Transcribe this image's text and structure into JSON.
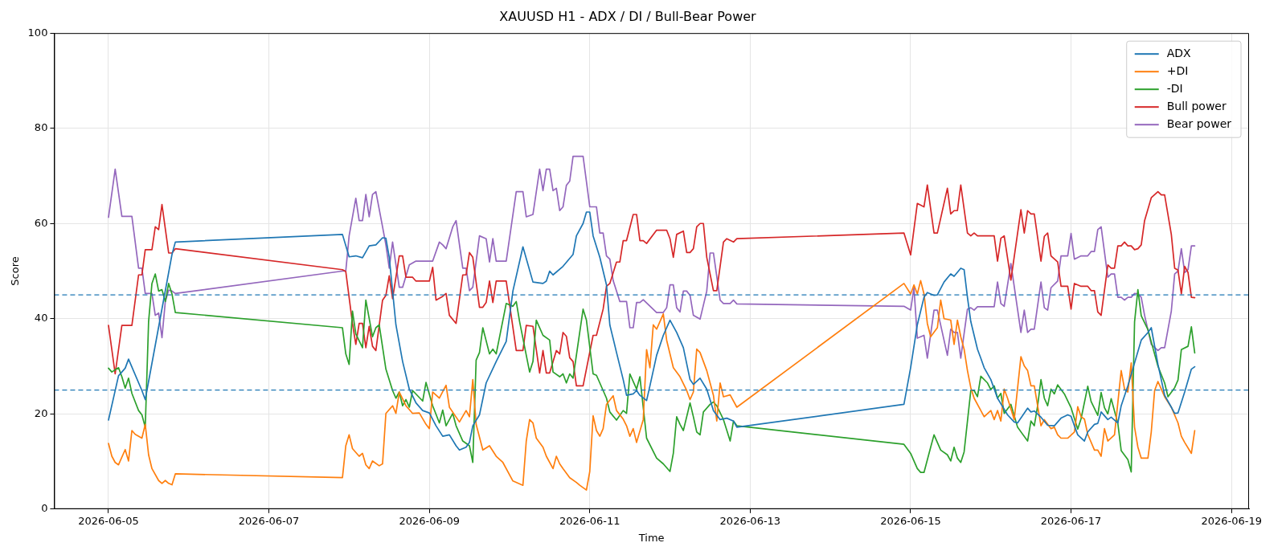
{
  "chart_data": {
    "type": "line",
    "title": "XAUUSD H1 - ADX / DI / Bull-Bear Power",
    "xlabel": "Time",
    "ylabel": "Score",
    "xlim": [
      "2026-06-04T07:45",
      "2026-06-19T05:15"
    ],
    "xticks": [
      "2026-06-05",
      "2026-06-07",
      "2026-06-09",
      "2026-06-11",
      "2026-06-13",
      "2026-06-15",
      "2026-06-17",
      "2026-06-19"
    ],
    "ylim": [
      0,
      100
    ],
    "yticks": [
      0,
      20,
      40,
      60,
      80,
      100
    ],
    "grid": true,
    "legend": "top right",
    "ref_lines": [
      {
        "axis": "y",
        "value": 45,
        "color": "#1f77b4",
        "line_style": "dashed"
      },
      {
        "axis": "y",
        "value": 25,
        "color": "#1f77b4",
        "line_style": "dashed"
      }
    ],
    "series": [
      {
        "name": "ADX",
        "color": "#1f77b4",
        "x": [
          "2026-06-05T00:00",
          "2026-06-05T03:00",
          "2026-06-05T05:00",
          "2026-06-05T06:00",
          "2026-06-05T10:00",
          "2026-06-05T11:00",
          "2026-06-05T19:00",
          "2026-06-05T20:00",
          "2026-06-07T22:00",
          "2026-06-08T00:00",
          "2026-06-08T02:00",
          "2026-06-08T04:00",
          "2026-06-08T06:00",
          "2026-06-08T08:00",
          "2026-06-08T10:00",
          "2026-06-08T11:00",
          "2026-06-08T12:00",
          "2026-06-08T14:00",
          "2026-06-08T16:00",
          "2026-06-08T18:00",
          "2026-06-08T20:00",
          "2026-06-08T22:00",
          "2026-06-09T00:00",
          "2026-06-09T02:00",
          "2026-06-09T04:00",
          "2026-06-09T06:00",
          "2026-06-09T08:00",
          "2026-06-09T09:00",
          "2026-06-09T11:00",
          "2026-06-09T12:00",
          "2026-06-09T13:00",
          "2026-06-09T15:00",
          "2026-06-09T17:00",
          "2026-06-09T20:00",
          "2026-06-09T23:00",
          "2026-06-10T01:00",
          "2026-06-10T04:00",
          "2026-06-10T07:00",
          "2026-06-10T10:00",
          "2026-06-10T11:00",
          "2026-06-10T12:00",
          "2026-06-10T13:00",
          "2026-06-10T16:00",
          "2026-06-10T19:00",
          "2026-06-10T20:00",
          "2026-06-10T22:00",
          "2026-06-10T23:00",
          "2026-06-11T00:00",
          "2026-06-11T01:00",
          "2026-06-11T03:00",
          "2026-06-11T05:00",
          "2026-06-11T06:00",
          "2026-06-11T08:00",
          "2026-06-11T10:00",
          "2026-06-11T11:00",
          "2026-06-11T13:00",
          "2026-06-11T14:00",
          "2026-06-11T15:00",
          "2026-06-11T17:00",
          "2026-06-11T18:00",
          "2026-06-11T20:00",
          "2026-06-11T22:00",
          "2026-06-12T00:00",
          "2026-06-12T02:00",
          "2026-06-12T04:00",
          "2026-06-12T06:00",
          "2026-06-12T07:00",
          "2026-06-12T09:00",
          "2026-06-12T11:00",
          "2026-06-12T13:00",
          "2026-06-12T15:00",
          "2026-06-12T17:00",
          "2026-06-12T19:00",
          "2026-06-12T20:00",
          "2026-06-14T22:00",
          "2026-06-15T00:00",
          "2026-06-15T02:00",
          "2026-06-15T04:00",
          "2026-06-15T05:00",
          "2026-06-15T07:00",
          "2026-06-15T08:00",
          "2026-06-15T10:00",
          "2026-06-15T12:00",
          "2026-06-15T13:00",
          "2026-06-15T15:00",
          "2026-06-15T16:00",
          "2026-06-15T17:00",
          "2026-06-15T18:00",
          "2026-06-15T20:00",
          "2026-06-15T21:00",
          "2026-06-15T22:00",
          "2026-06-16T00:00",
          "2026-06-16T02:00",
          "2026-06-16T05:00",
          "2026-06-16T07:00",
          "2026-06-16T08:00",
          "2026-06-16T11:00",
          "2026-06-16T12:00",
          "2026-06-16T13:00",
          "2026-06-16T15:00",
          "2026-06-16T17:00",
          "2026-06-16T19:00",
          "2026-06-16T21:00",
          "2026-06-16T23:00",
          "2026-06-17T00:00",
          "2026-06-17T01:00",
          "2026-06-17T02:00",
          "2026-06-17T04:00",
          "2026-06-17T05:00",
          "2026-06-17T07:00",
          "2026-06-17T08:00",
          "2026-06-17T09:00",
          "2026-06-17T11:00",
          "2026-06-17T12:00",
          "2026-06-17T14:00",
          "2026-06-17T15:00",
          "2026-06-17T17:00",
          "2026-06-17T19:00",
          "2026-06-17T21:00",
          "2026-06-17T23:00",
          "2026-06-18T00:00",
          "2026-06-18T02:00",
          "2026-06-18T04:00",
          "2026-06-18T06:00",
          "2026-06-18T07:00",
          "2026-06-18T08:00",
          "2026-06-18T10:00",
          "2026-06-18T12:00",
          "2026-06-18T13:00"
        ],
        "values": [
          18.7,
          28,
          29.6,
          31.5,
          24.9,
          23,
          53.5,
          56.1,
          57.7,
          53,
          53.2,
          52.8,
          55.3,
          55.5,
          57,
          56.9,
          52.9,
          38.7,
          31,
          25.2,
          22.3,
          20.7,
          20.2,
          17.5,
          15.3,
          15.6,
          13.3,
          12.4,
          13,
          14,
          17.5,
          19.8,
          26.5,
          31,
          35.2,
          45.8,
          55.1,
          47.7,
          47.4,
          47.9,
          50,
          49.2,
          51,
          53.5,
          57.4,
          60,
          62.4,
          62.4,
          57.4,
          52.9,
          47.1,
          38.7,
          32.9,
          27.2,
          23.9,
          24.2,
          24.9,
          23.9,
          22.8,
          25.9,
          32.3,
          36.5,
          39.7,
          37.1,
          33.9,
          27.2,
          26.2,
          27.5,
          25.2,
          20.7,
          18.8,
          19.1,
          18.5,
          17.2,
          22,
          29.7,
          38.7,
          44.5,
          45.5,
          44.9,
          45,
          47.7,
          49.4,
          48.9,
          50.6,
          50.3,
          44.5,
          39.4,
          33.6,
          31.7,
          29.7,
          27.2,
          23.3,
          19.8,
          18.3,
          18.1,
          21.2,
          20.4,
          20.6,
          19.3,
          17.6,
          17.5,
          19.1,
          19.8,
          19.5,
          17.5,
          15.6,
          14.3,
          16.2,
          17.8,
          18,
          20.4,
          18.8,
          19.3,
          18.1,
          21.7,
          25.9,
          30.7,
          35.5,
          37.1,
          38.1,
          30.4,
          23.9,
          21.4,
          20.1,
          20.2,
          24.6,
          29.4,
          29.9
        ]
      },
      {
        "name": "+DI",
        "color": "#ff7f0e",
        "x": [
          "2026-06-05T00:00",
          "2026-06-05T01:00",
          "2026-06-05T02:00",
          "2026-06-05T03:00",
          "2026-06-05T05:00",
          "2026-06-05T06:00",
          "2026-06-05T07:00",
          "2026-06-05T08:00",
          "2026-06-05T10:00",
          "2026-06-05T11:00",
          "2026-06-05T12:00",
          "2026-06-05T13:00",
          "2026-06-05T15:00",
          "2026-06-05T16:00",
          "2026-06-05T17:00",
          "2026-06-05T18:00",
          "2026-06-05T19:00",
          "2026-06-05T20:00",
          "2026-06-07T22:00",
          "2026-06-07T23:00",
          "2026-06-08T00:00",
          "2026-06-08T01:00",
          "2026-06-08T03:00",
          "2026-06-08T04:00",
          "2026-06-08T05:00",
          "2026-06-08T06:00",
          "2026-06-08T07:00",
          "2026-06-08T09:00",
          "2026-06-08T10:00",
          "2026-06-08T11:00",
          "2026-06-08T13:00",
          "2026-06-08T14:00",
          "2026-06-08T15:00",
          "2026-06-08T17:00",
          "2026-06-08T19:00",
          "2026-06-08T21:00",
          "2026-06-08T23:00",
          "2026-06-09T00:00",
          "2026-06-09T01:00",
          "2026-06-09T03:00",
          "2026-06-09T05:00",
          "2026-06-09T06:00",
          "2026-06-09T09:00",
          "2026-06-09T11:00",
          "2026-06-09T12:00",
          "2026-06-09T13:00",
          "2026-06-09T14:00",
          "2026-06-09T16:00",
          "2026-06-09T18:00",
          "2026-06-09T20:00",
          "2026-06-09T22:00",
          "2026-06-10T01:00",
          "2026-06-10T04:00",
          "2026-06-10T05:00",
          "2026-06-10T06:00",
          "2026-06-10T07:00",
          "2026-06-10T08:00",
          "2026-06-10T10:00",
          "2026-06-10T11:00",
          "2026-06-10T13:00",
          "2026-06-10T14:00",
          "2026-06-10T15:00",
          "2026-06-10T16:00",
          "2026-06-10T18:00",
          "2026-06-10T20:00",
          "2026-06-10T21:00",
          "2026-06-10T23:00",
          "2026-06-11T00:00",
          "2026-06-11T01:00",
          "2026-06-11T02:00",
          "2026-06-11T03:00",
          "2026-06-11T04:00",
          "2026-06-11T05:00",
          "2026-06-11T07:00",
          "2026-06-11T08:00",
          "2026-06-11T10:00",
          "2026-06-11T11:00",
          "2026-06-11T12:00",
          "2026-06-11T13:00",
          "2026-06-11T14:00",
          "2026-06-11T16:00",
          "2026-06-11T17:00",
          "2026-06-11T18:00",
          "2026-06-11T19:00",
          "2026-06-11T20:00",
          "2026-06-11T22:00",
          "2026-06-11T23:00",
          "2026-06-12T01:00",
          "2026-06-12T03:00",
          "2026-06-12T05:00",
          "2026-06-12T06:00",
          "2026-06-12T07:00",
          "2026-06-12T08:00",
          "2026-06-12T09:00",
          "2026-06-12T11:00",
          "2026-06-12T13:00",
          "2026-06-12T14:00",
          "2026-06-12T15:00",
          "2026-06-12T16:00",
          "2026-06-12T18:00",
          "2026-06-12T20:00",
          "2026-06-14T22:00",
          "2026-06-15T00:00",
          "2026-06-15T01:00",
          "2026-06-15T02:00",
          "2026-06-15T03:00",
          "2026-06-15T04:00",
          "2026-06-15T05:00",
          "2026-06-15T06:00",
          "2026-06-15T08:00",
          "2026-06-15T09:00",
          "2026-06-15T10:00",
          "2026-06-15T12:00",
          "2026-06-15T13:00",
          "2026-06-15T14:00",
          "2026-06-15T15:00",
          "2026-06-15T16:00",
          "2026-06-15T17:00",
          "2026-06-15T18:00",
          "2026-06-15T19:00",
          "2026-06-15T21:00",
          "2026-06-15T22:00",
          "2026-06-16T00:00",
          "2026-06-16T01:00",
          "2026-06-16T02:00",
          "2026-06-16T03:00",
          "2026-06-16T04:00",
          "2026-06-16T05:00",
          "2026-06-16T07:00",
          "2026-06-16T09:00",
          "2026-06-16T10:00",
          "2026-06-16T11:00",
          "2026-06-16T12:00",
          "2026-06-16T13:00",
          "2026-06-16T15:00",
          "2026-06-16T16:00",
          "2026-06-16T18:00",
          "2026-06-16T19:00",
          "2026-06-16T20:00",
          "2026-06-16T21:00",
          "2026-06-16T23:00",
          "2026-06-17T01:00",
          "2026-06-17T02:00",
          "2026-06-17T03:00",
          "2026-06-17T04:00",
          "2026-06-17T05:00",
          "2026-06-17T07:00",
          "2026-06-17T08:00",
          "2026-06-17T09:00",
          "2026-06-17T10:00",
          "2026-06-17T11:00",
          "2026-06-17T13:00",
          "2026-06-17T15:00",
          "2026-06-17T16:00",
          "2026-06-17T17:00",
          "2026-06-17T18:00",
          "2026-06-17T19:00",
          "2026-06-17T20:00",
          "2026-06-17T21:00",
          "2026-06-17T23:00",
          "2026-06-18T00:00",
          "2026-06-18T01:00",
          "2026-06-18T02:00",
          "2026-06-18T03:00",
          "2026-06-18T04:00",
          "2026-06-18T06:00",
          "2026-06-18T08:00",
          "2026-06-18T09:00",
          "2026-06-18T10:00",
          "2026-06-18T12:00",
          "2026-06-18T13:00"
        ],
        "values": [
          13.8,
          11.1,
          9.8,
          9.3,
          12.5,
          10.1,
          16.5,
          15.7,
          14.9,
          17.8,
          11.4,
          8.5,
          6,
          5.4,
          6,
          5.4,
          5.1,
          7.4,
          6.6,
          13.3,
          15.6,
          12.7,
          11.1,
          11.7,
          9.3,
          8.5,
          10.1,
          9.1,
          9.5,
          20.1,
          21.7,
          20.1,
          24.6,
          21.7,
          20.1,
          20.2,
          17.8,
          16.9,
          24.6,
          23.3,
          26,
          21.4,
          18.3,
          20.7,
          19.4,
          27.2,
          17.8,
          12.4,
          13.3,
          11.1,
          9.8,
          5.9,
          5,
          14.3,
          18.8,
          18.1,
          14.9,
          13,
          11.1,
          8.5,
          11.1,
          9.5,
          8.5,
          6.6,
          5.6,
          5,
          4,
          7.9,
          19.6,
          16.5,
          15.3,
          16.9,
          22,
          23.8,
          20.7,
          18.9,
          17.5,
          15.3,
          16.9,
          14,
          18.8,
          33.5,
          29.7,
          38.7,
          37.8,
          41,
          35.5,
          29.7,
          27.8,
          24.9,
          23,
          24.6,
          33.6,
          32.9,
          29.1,
          23.9,
          18.5,
          26.5,
          23.6,
          24,
          21.4,
          47.4,
          45.2,
          47.1,
          45.2,
          48,
          45.2,
          39,
          36.2,
          38.1,
          43.9,
          40,
          39.7,
          34.6,
          39.7,
          36.2,
          33.6,
          29.1,
          25.5,
          23.3,
          20.7,
          19.4,
          20.7,
          18.8,
          20.7,
          18.5,
          25.2,
          23.3,
          18.8,
          32,
          30.1,
          29.1,
          25.9,
          25.9,
          17.5,
          18.8,
          16.9,
          17.2,
          15.6,
          14.9,
          14.9,
          16.2,
          21.5,
          19.4,
          18.9,
          15.7,
          12.4,
          12.4,
          11.1,
          16.9,
          14.3,
          15.6,
          29.1,
          25.2,
          24.6,
          30.7,
          17.2,
          13,
          10.7,
          10.7,
          16.2,
          24.9,
          26.8,
          25.2,
          23.6,
          21.4,
          18.1,
          15.3,
          14,
          11.7,
          16.5
        ]
      },
      {
        "name": "-DI",
        "color": "#2ca02c",
        "x": [
          "2026-06-05T00:00",
          "2026-06-05T01:00",
          "2026-06-05T03:00",
          "2026-06-05T04:00",
          "2026-06-05T05:00",
          "2026-06-05T06:00",
          "2026-06-05T07:00",
          "2026-06-05T09:00",
          "2026-06-05T10:00",
          "2026-06-05T11:00",
          "2026-06-05T12:00",
          "2026-06-05T13:00",
          "2026-06-05T14:00",
          "2026-06-05T15:00",
          "2026-06-05T16:00",
          "2026-06-05T17:00",
          "2026-06-05T18:00",
          "2026-06-05T19:00",
          "2026-06-05T20:00",
          "2026-06-07T22:00",
          "2026-06-07T23:00",
          "2026-06-08T00:00",
          "2026-06-08T01:00",
          "2026-06-08T02:00",
          "2026-06-08T04:00",
          "2026-06-08T05:00",
          "2026-06-08T07:00",
          "2026-06-08T08:00",
          "2026-06-08T09:00",
          "2026-06-08T11:00",
          "2026-06-08T13:00",
          "2026-06-08T14:00",
          "2026-06-08T15:00",
          "2026-06-08T16:00",
          "2026-06-08T17:00",
          "2026-06-08T18:00",
          "2026-06-08T19:00",
          "2026-06-08T22:00",
          "2026-06-08T23:00",
          "2026-06-09T01:00",
          "2026-06-09T03:00",
          "2026-06-09T04:00",
          "2026-06-09T05:00",
          "2026-06-09T07:00",
          "2026-06-09T08:00",
          "2026-06-09T10:00",
          "2026-06-09T12:00",
          "2026-06-09T13:00",
          "2026-06-09T14:00",
          "2026-06-09T15:00",
          "2026-06-09T16:00",
          "2026-06-09T18:00",
          "2026-06-09T19:00",
          "2026-06-09T20:00",
          "2026-06-09T23:00",
          "2026-06-10T01:00",
          "2026-06-10T02:00",
          "2026-06-10T03:00",
          "2026-06-10T06:00",
          "2026-06-10T07:00",
          "2026-06-10T08:00",
          "2026-06-10T10:00",
          "2026-06-10T12:00",
          "2026-06-10T13:00",
          "2026-06-10T15:00",
          "2026-06-10T16:00",
          "2026-06-10T17:00",
          "2026-06-10T18:00",
          "2026-06-10T19:00",
          "2026-06-10T22:00",
          "2026-06-10T23:00",
          "2026-06-11T01:00",
          "2026-06-11T02:00",
          "2026-06-11T05:00",
          "2026-06-11T06:00",
          "2026-06-11T08:00",
          "2026-06-11T10:00",
          "2026-06-11T11:00",
          "2026-06-11T12:00",
          "2026-06-11T14:00",
          "2026-06-11T15:00",
          "2026-06-11T17:00",
          "2026-06-11T20:00",
          "2026-06-11T22:00",
          "2026-06-12T00:00",
          "2026-06-12T01:00",
          "2026-06-12T02:00",
          "2026-06-12T03:00",
          "2026-06-12T04:00",
          "2026-06-12T06:00",
          "2026-06-12T07:00",
          "2026-06-12T08:00",
          "2026-06-12T09:00",
          "2026-06-12T10:00",
          "2026-06-12T12:00",
          "2026-06-12T13:00",
          "2026-06-12T14:00",
          "2026-06-12T16:00",
          "2026-06-12T18:00",
          "2026-06-12T19:00",
          "2026-06-12T20:00",
          "2026-06-14T22:00",
          "2026-06-15T00:00",
          "2026-06-15T02:00",
          "2026-06-15T03:00",
          "2026-06-15T04:00",
          "2026-06-15T06:00",
          "2026-06-15T07:00",
          "2026-06-15T09:00",
          "2026-06-15T11:00",
          "2026-06-15T12:00",
          "2026-06-15T13:00",
          "2026-06-15T14:00",
          "2026-06-15T15:00",
          "2026-06-15T16:00",
          "2026-06-15T18:00",
          "2026-06-15T19:00",
          "2026-06-15T20:00",
          "2026-06-15T21:00",
          "2026-06-15T23:00",
          "2026-06-16T00:00",
          "2026-06-16T01:00",
          "2026-06-16T02:00",
          "2026-06-16T03:00",
          "2026-06-16T04:00",
          "2026-06-16T06:00",
          "2026-06-16T08:00",
          "2026-06-16T11:00",
          "2026-06-16T12:00",
          "2026-06-16T13:00",
          "2026-06-16T14:00",
          "2026-06-16T15:00",
          "2026-06-16T16:00",
          "2026-06-16T17:00",
          "2026-06-16T18:00",
          "2026-06-16T19:00",
          "2026-06-16T20:00",
          "2026-06-16T22:00",
          "2026-06-17T00:00",
          "2026-06-17T02:00",
          "2026-06-17T03:00",
          "2026-06-17T05:00",
          "2026-06-17T06:00",
          "2026-06-17T08:00",
          "2026-06-17T09:00",
          "2026-06-17T10:00",
          "2026-06-17T11:00",
          "2026-06-17T12:00",
          "2026-06-17T14:00",
          "2026-06-17T15:00",
          "2026-06-17T17:00",
          "2026-06-17T18:00",
          "2026-06-17T19:00",
          "2026-06-17T20:00",
          "2026-06-17T21:00",
          "2026-06-17T23:00",
          "2026-06-18T02:00",
          "2026-06-18T04:00",
          "2026-06-18T05:00",
          "2026-06-18T07:00",
          "2026-06-18T08:00",
          "2026-06-18T09:00",
          "2026-06-18T11:00",
          "2026-06-18T12:00",
          "2026-06-18T13:00"
        ],
        "values": [
          29.6,
          28.8,
          29.7,
          27.8,
          25.4,
          27.5,
          24.3,
          20.7,
          19.8,
          17.2,
          39.4,
          47.4,
          49.4,
          45.8,
          46.1,
          43.6,
          47.4,
          45.2,
          41.3,
          38.1,
          32.6,
          30.4,
          41.6,
          36.8,
          33.9,
          43.9,
          36.2,
          38.1,
          38.7,
          29.4,
          24.9,
          23.3,
          24.6,
          21.7,
          23,
          21.4,
          24.9,
          22.7,
          26.6,
          21.7,
          18.1,
          20.8,
          17.5,
          20.1,
          17.5,
          14.3,
          13.3,
          9.8,
          31.3,
          32.9,
          38.1,
          32.6,
          33.6,
          32.6,
          43.2,
          42.6,
          43.6,
          39.4,
          28.8,
          31,
          39.7,
          36.5,
          35.5,
          28.8,
          27.8,
          28.4,
          26.5,
          28.4,
          27.5,
          42,
          39.7,
          28.4,
          28.1,
          23.3,
          20.4,
          18.7,
          20.7,
          20.1,
          28.4,
          25.2,
          27.8,
          14.9,
          10.7,
          9.5,
          7.9,
          11.7,
          19.4,
          17.8,
          16.5,
          22.3,
          19.4,
          16.2,
          15.6,
          20.4,
          22,
          22.5,
          21.7,
          18.8,
          14.3,
          18.5,
          17.5,
          13.6,
          11.7,
          8.5,
          7.7,
          7.7,
          13,
          15.6,
          12.4,
          11.4,
          10.1,
          13,
          10.7,
          9.8,
          12,
          24.9,
          24.9,
          23.6,
          27.9,
          26.5,
          25.1,
          25.9,
          23.3,
          24.3,
          20.1,
          22,
          17.2,
          14.3,
          18.5,
          17.5,
          21.7,
          27.2,
          23.3,
          21.7,
          25.2,
          24.2,
          26.1,
          24.2,
          21.3,
          16.8,
          19,
          25.8,
          22.6,
          19.7,
          24.5,
          21.3,
          20,
          23.2,
          18,
          12.3,
          10.4,
          7.8,
          39.3,
          46.1,
          40.6,
          37.7,
          30,
          26.5,
          23.6,
          25.5,
          27.1,
          33.5,
          34.2,
          38.3,
          32.8
        ]
      },
      {
        "name": "Bull power",
        "color": "#d62728",
        "x": [
          "2026-06-05T00:00",
          "2026-06-05T02:00",
          "2026-06-05T04:00",
          "2026-06-05T07:00",
          "2026-06-05T09:00",
          "2026-06-05T10:00",
          "2026-06-05T11:00",
          "2026-06-05T13:00",
          "2026-06-05T14:00",
          "2026-06-05T15:00",
          "2026-06-05T16:00",
          "2026-06-05T18:00",
          "2026-06-05T19:00",
          "2026-06-05T20:00",
          "2026-06-07T22:00",
          "2026-06-07T23:00",
          "2026-06-08T01:00",
          "2026-06-08T02:00",
          "2026-06-08T03:00",
          "2026-06-08T04:00",
          "2026-06-08T05:00",
          "2026-06-08T06:00",
          "2026-06-08T07:00",
          "2026-06-08T08:00",
          "2026-06-08T10:00",
          "2026-06-08T11:00",
          "2026-06-08T12:00",
          "2026-06-08T13:00",
          "2026-06-08T15:00",
          "2026-06-08T16:00",
          "2026-06-08T17:00",
          "2026-06-08T19:00",
          "2026-06-08T20:00",
          "2026-06-09T00:00",
          "2026-06-09T01:00",
          "2026-06-09T02:00",
          "2026-06-09T04:00",
          "2026-06-09T05:00",
          "2026-06-09T06:00",
          "2026-06-09T08:00",
          "2026-06-09T10:00",
          "2026-06-09T11:00",
          "2026-06-09T12:00",
          "2026-06-09T13:00",
          "2026-06-09T15:00",
          "2026-06-09T16:00",
          "2026-06-09T17:00",
          "2026-06-09T18:00",
          "2026-06-09T19:00",
          "2026-06-09T20:00",
          "2026-06-09T23:00",
          "2026-06-10T02:00",
          "2026-06-10T04:00",
          "2026-06-10T05:00",
          "2026-06-10T07:00",
          "2026-06-10T09:00",
          "2026-06-10T10:00",
          "2026-06-10T11:00",
          "2026-06-10T12:00",
          "2026-06-10T14:00",
          "2026-06-10T15:00",
          "2026-06-10T16:00",
          "2026-06-10T17:00",
          "2026-06-10T18:00",
          "2026-06-10T19:00",
          "2026-06-10T20:00",
          "2026-06-10T22:00",
          "2026-06-11T01:00",
          "2026-06-11T02:00",
          "2026-06-11T04:00",
          "2026-06-11T05:00",
          "2026-06-11T06:00",
          "2026-06-11T08:00",
          "2026-06-11T09:00",
          "2026-06-11T10:00",
          "2026-06-11T11:00",
          "2026-06-11T13:00",
          "2026-06-11T14:00",
          "2026-06-11T15:00",
          "2026-06-11T16:00",
          "2026-06-11T17:00",
          "2026-06-11T20:00",
          "2026-06-11T23:00",
          "2026-06-12T00:00",
          "2026-06-12T01:00",
          "2026-06-12T02:00",
          "2026-06-12T04:00",
          "2026-06-12T05:00",
          "2026-06-12T06:00",
          "2026-06-12T07:00",
          "2026-06-12T08:00",
          "2026-06-12T09:00",
          "2026-06-12T10:00",
          "2026-06-12T11:00",
          "2026-06-12T13:00",
          "2026-06-12T14:00",
          "2026-06-12T16:00",
          "2026-06-12T17:00",
          "2026-06-12T19:00",
          "2026-06-12T20:00",
          "2026-06-14T22:00",
          "2026-06-15T00:00",
          "2026-06-15T02:00",
          "2026-06-15T04:00",
          "2026-06-15T05:00",
          "2026-06-15T07:00",
          "2026-06-15T08:00",
          "2026-06-15T11:00",
          "2026-06-15T12:00",
          "2026-06-15T13:00",
          "2026-06-15T14:00",
          "2026-06-15T15:00",
          "2026-06-15T17:00",
          "2026-06-15T18:00",
          "2026-06-15T19:00",
          "2026-06-15T20:00",
          "2026-06-16T01:00",
          "2026-06-16T02:00",
          "2026-06-16T03:00",
          "2026-06-16T04:00",
          "2026-06-16T06:00",
          "2026-06-16T09:00",
          "2026-06-16T10:00",
          "2026-06-16T11:00",
          "2026-06-16T12:00",
          "2026-06-16T13:00",
          "2026-06-16T15:00",
          "2026-06-16T16:00",
          "2026-06-16T17:00",
          "2026-06-16T18:00",
          "2026-06-16T20:00",
          "2026-06-16T21:00",
          "2026-06-16T23:00",
          "2026-06-17T00:00",
          "2026-06-17T01:00",
          "2026-06-17T03:00",
          "2026-06-17T05:00",
          "2026-06-17T06:00",
          "2026-06-17T07:00",
          "2026-06-17T08:00",
          "2026-06-17T09:00",
          "2026-06-17T11:00",
          "2026-06-17T12:00",
          "2026-06-17T13:00",
          "2026-06-17T14:00",
          "2026-06-17T15:00",
          "2026-06-17T16:00",
          "2026-06-17T17:00",
          "2026-06-17T18:00",
          "2026-06-17T19:00",
          "2026-06-17T20:00",
          "2026-06-17T21:00",
          "2026-06-17T22:00",
          "2026-06-18T00:00",
          "2026-06-18T02:00",
          "2026-06-18T03:00",
          "2026-06-18T04:00",
          "2026-06-18T06:00",
          "2026-06-18T07:00",
          "2026-06-18T08:00",
          "2026-06-18T09:00",
          "2026-06-18T10:00",
          "2026-06-18T11:00",
          "2026-06-18T12:00",
          "2026-06-18T13:00"
        ],
        "values": [
          38.6,
          28.4,
          38.6,
          38.6,
          49.2,
          49.2,
          54.5,
          54.5,
          59.3,
          58.7,
          64,
          53.8,
          53.8,
          54.7,
          50.3,
          49.9,
          39,
          34.6,
          39,
          39,
          33.9,
          38.4,
          34.2,
          33.3,
          43.9,
          44.9,
          49,
          44.2,
          53.2,
          53.2,
          48.7,
          48.7,
          47.9,
          47.9,
          50.8,
          43.9,
          44.7,
          45.3,
          40.7,
          39,
          49.2,
          49.2,
          53.9,
          52.9,
          42.4,
          42.4,
          43.4,
          47.9,
          43.4,
          47.9,
          47.9,
          33.3,
          33.3,
          38.6,
          38.4,
          28.6,
          33.3,
          28.6,
          28.6,
          33.3,
          32.6,
          37.1,
          36.3,
          31.8,
          31,
          25.9,
          25.9,
          36.5,
          36.5,
          42,
          46.8,
          47.4,
          51.9,
          51.9,
          56.4,
          56.4,
          61.9,
          61.9,
          56.4,
          56.4,
          55.8,
          58.6,
          58.6,
          56.8,
          52.9,
          57.7,
          58.4,
          53.9,
          53.9,
          54.7,
          59.3,
          60,
          60,
          52.9,
          45.9,
          45.9,
          56.1,
          56.8,
          56.1,
          56.8,
          58,
          53.4,
          64.2,
          63.5,
          68.1,
          58,
          58,
          67.4,
          62,
          62.7,
          62.7,
          68.1,
          58,
          57.4,
          58,
          57.4,
          57.4,
          52.1,
          56.9,
          57.4,
          48.1,
          62.9,
          58,
          62.7,
          62,
          62,
          52.1,
          57.3,
          58,
          53.2,
          51.9,
          46.8,
          46.8,
          42,
          47.4,
          46.8,
          46.8,
          45.9,
          45.9,
          41.4,
          40.7,
          51.3,
          50.6,
          50.6,
          55.3,
          55.3,
          56.1,
          55.3,
          55.3,
          54.5,
          54.7,
          55.5,
          60.6,
          65.4,
          66.7,
          66,
          66,
          57.7,
          50.6,
          50.2,
          45.2,
          51,
          49.7,
          44.5,
          44.4
        ]
      },
      {
        "name": "Bear power",
        "color": "#9467bd",
        "x": [
          "2026-06-05T00:00",
          "2026-06-05T02:00",
          "2026-06-05T04:00",
          "2026-06-05T07:00",
          "2026-06-05T09:00",
          "2026-06-05T10:00",
          "2026-06-05T11:00",
          "2026-06-05T13:00",
          "2026-06-05T14:00",
          "2026-06-05T15:00",
          "2026-06-05T16:00",
          "2026-06-05T17:00",
          "2026-06-05T18:00",
          "2026-06-05T19:00",
          "2026-06-05T20:00",
          "2026-06-07T22:00",
          "2026-06-07T23:00",
          "2026-06-08T00:00",
          "2026-06-08T02:00",
          "2026-06-08T03:00",
          "2026-06-08T04:00",
          "2026-06-08T05:00",
          "2026-06-08T06:00",
          "2026-06-08T07:00",
          "2026-06-08T08:00",
          "2026-06-08T10:00",
          "2026-06-08T11:00",
          "2026-06-08T12:00",
          "2026-06-08T13:00",
          "2026-06-08T15:00",
          "2026-06-08T16:00",
          "2026-06-08T18:00",
          "2026-06-08T20:00",
          "2026-06-09T01:00",
          "2026-06-09T03:00",
          "2026-06-09T04:00",
          "2026-06-09T05:00",
          "2026-06-09T07:00",
          "2026-06-09T08:00",
          "2026-06-09T10:00",
          "2026-06-09T11:00",
          "2026-06-09T12:00",
          "2026-06-09T13:00",
          "2026-06-09T15:00",
          "2026-06-09T17:00",
          "2026-06-09T18:00",
          "2026-06-09T19:00",
          "2026-06-09T20:00",
          "2026-06-09T23:00",
          "2026-06-10T02:00",
          "2026-06-10T04:00",
          "2026-06-10T05:00",
          "2026-06-10T07:00",
          "2026-06-10T09:00",
          "2026-06-10T10:00",
          "2026-06-10T11:00",
          "2026-06-10T12:00",
          "2026-06-10T13:00",
          "2026-06-10T14:00",
          "2026-06-10T15:00",
          "2026-06-10T16:00",
          "2026-06-10T17:00",
          "2026-06-10T18:00",
          "2026-06-10T19:00",
          "2026-06-10T22:00",
          "2026-06-11T00:00",
          "2026-06-11T02:00",
          "2026-06-11T03:00",
          "2026-06-11T04:00",
          "2026-06-11T05:00",
          "2026-06-11T06:00",
          "2026-06-11T07:00",
          "2026-06-11T09:00",
          "2026-06-11T11:00",
          "2026-06-11T12:00",
          "2026-06-11T13:00",
          "2026-06-11T14:00",
          "2026-06-11T15:00",
          "2026-06-11T16:00",
          "2026-06-11T20:00",
          "2026-06-11T22:00",
          "2026-06-11T23:00",
          "2026-06-12T00:00",
          "2026-06-12T01:00",
          "2026-06-12T02:00",
          "2026-06-12T03:00",
          "2026-06-12T04:00",
          "2026-06-12T05:00",
          "2026-06-12T06:00",
          "2026-06-12T07:00",
          "2026-06-12T09:00",
          "2026-06-12T11:00",
          "2026-06-12T12:00",
          "2026-06-12T13:00",
          "2026-06-12T15:00",
          "2026-06-12T16:00",
          "2026-06-12T18:00",
          "2026-06-12T19:00",
          "2026-06-12T20:00",
          "2026-06-14T22:00",
          "2026-06-15T00:00",
          "2026-06-15T01:00",
          "2026-06-15T02:00",
          "2026-06-15T04:00",
          "2026-06-15T05:00",
          "2026-06-15T07:00",
          "2026-06-15T08:00",
          "2026-06-15T11:00",
          "2026-06-15T12:00",
          "2026-06-15T13:00",
          "2026-06-15T14:00",
          "2026-06-15T15:00",
          "2026-06-15T17:00",
          "2026-06-15T18:00",
          "2026-06-15T19:00",
          "2026-06-15T20:00",
          "2026-06-16T01:00",
          "2026-06-16T02:00",
          "2026-06-16T03:00",
          "2026-06-16T04:00",
          "2026-06-16T06:00",
          "2026-06-16T09:00",
          "2026-06-16T10:00",
          "2026-06-16T11:00",
          "2026-06-16T12:00",
          "2026-06-16T13:00",
          "2026-06-16T15:00",
          "2026-06-16T16:00",
          "2026-06-16T17:00",
          "2026-06-16T18:00",
          "2026-06-16T20:00",
          "2026-06-16T21:00",
          "2026-06-16T23:00",
          "2026-06-17T00:00",
          "2026-06-17T01:00",
          "2026-06-17T03:00",
          "2026-06-17T05:00",
          "2026-06-17T06:00",
          "2026-06-17T07:00",
          "2026-06-17T08:00",
          "2026-06-17T09:00",
          "2026-06-17T11:00",
          "2026-06-17T12:00",
          "2026-06-17T13:00",
          "2026-06-17T14:00",
          "2026-06-17T15:00",
          "2026-06-17T16:00",
          "2026-06-17T17:00",
          "2026-06-17T18:00",
          "2026-06-17T19:00",
          "2026-06-17T20:00",
          "2026-06-17T21:00",
          "2026-06-17T22:00",
          "2026-06-18T00:00",
          "2026-06-18T02:00",
          "2026-06-18T03:00",
          "2026-06-18T04:00",
          "2026-06-18T06:00",
          "2026-06-18T07:00",
          "2026-06-18T08:00",
          "2026-06-18T09:00",
          "2026-06-18T10:00",
          "2026-06-18T11:00",
          "2026-06-18T12:00",
          "2026-06-18T13:00"
        ],
        "values": [
          61.3,
          71.4,
          61.5,
          61.5,
          50.6,
          50.6,
          45.3,
          45.3,
          40.7,
          41.2,
          36,
          43.6,
          46,
          45.8,
          45.3,
          50,
          50,
          57.4,
          65.3,
          60.6,
          60.6,
          66.1,
          61.4,
          66.1,
          66.7,
          59.3,
          55.5,
          50.6,
          56.1,
          46.6,
          46.6,
          51.3,
          52.1,
          52.1,
          56.1,
          55.5,
          54.7,
          59.3,
          60.6,
          50.6,
          50.6,
          45.9,
          46.6,
          57.4,
          56.8,
          51.9,
          56.8,
          52.1,
          52.1,
          66.7,
          66.7,
          61.4,
          61.9,
          71.4,
          66.9,
          71.4,
          71.4,
          66.9,
          67.4,
          62.7,
          63.5,
          68,
          68.9,
          74.1,
          74.1,
          63.5,
          63.5,
          58,
          58,
          53.2,
          52.5,
          48,
          43.6,
          43.6,
          38.1,
          38.1,
          43.4,
          43.4,
          44,
          41.3,
          41.3,
          42.3,
          47.1,
          47.1,
          42.3,
          41.4,
          45.8,
          45.8,
          44.9,
          40.7,
          39.9,
          45.8,
          53.8,
          53.8,
          43.9,
          43.2,
          43.2,
          43.9,
          43.1,
          42.6,
          41.8,
          46.5,
          35.9,
          36.5,
          31.7,
          41.8,
          41.8,
          32.3,
          37.8,
          37.1,
          37.1,
          31.7,
          42,
          42.3,
          41.8,
          42.5,
          42.5,
          47.7,
          43.2,
          42.6,
          51.6,
          37.1,
          41.8,
          37.1,
          37.8,
          37.8,
          47.7,
          42.3,
          41.8,
          46.5,
          47.9,
          53.2,
          53.2,
          57.9,
          52.5,
          53.2,
          53.2,
          54.1,
          54.1,
          58.7,
          59.3,
          48.7,
          49.4,
          49.4,
          44.5,
          44.5,
          43.9,
          44.5,
          44.5,
          45.3,
          45.2,
          44.5,
          40.7,
          34.6,
          33.3,
          33.9,
          33.9,
          41.6,
          49.4,
          50,
          54.7,
          49.7,
          50.3,
          55.3,
          55.3
        ]
      }
    ]
  }
}
